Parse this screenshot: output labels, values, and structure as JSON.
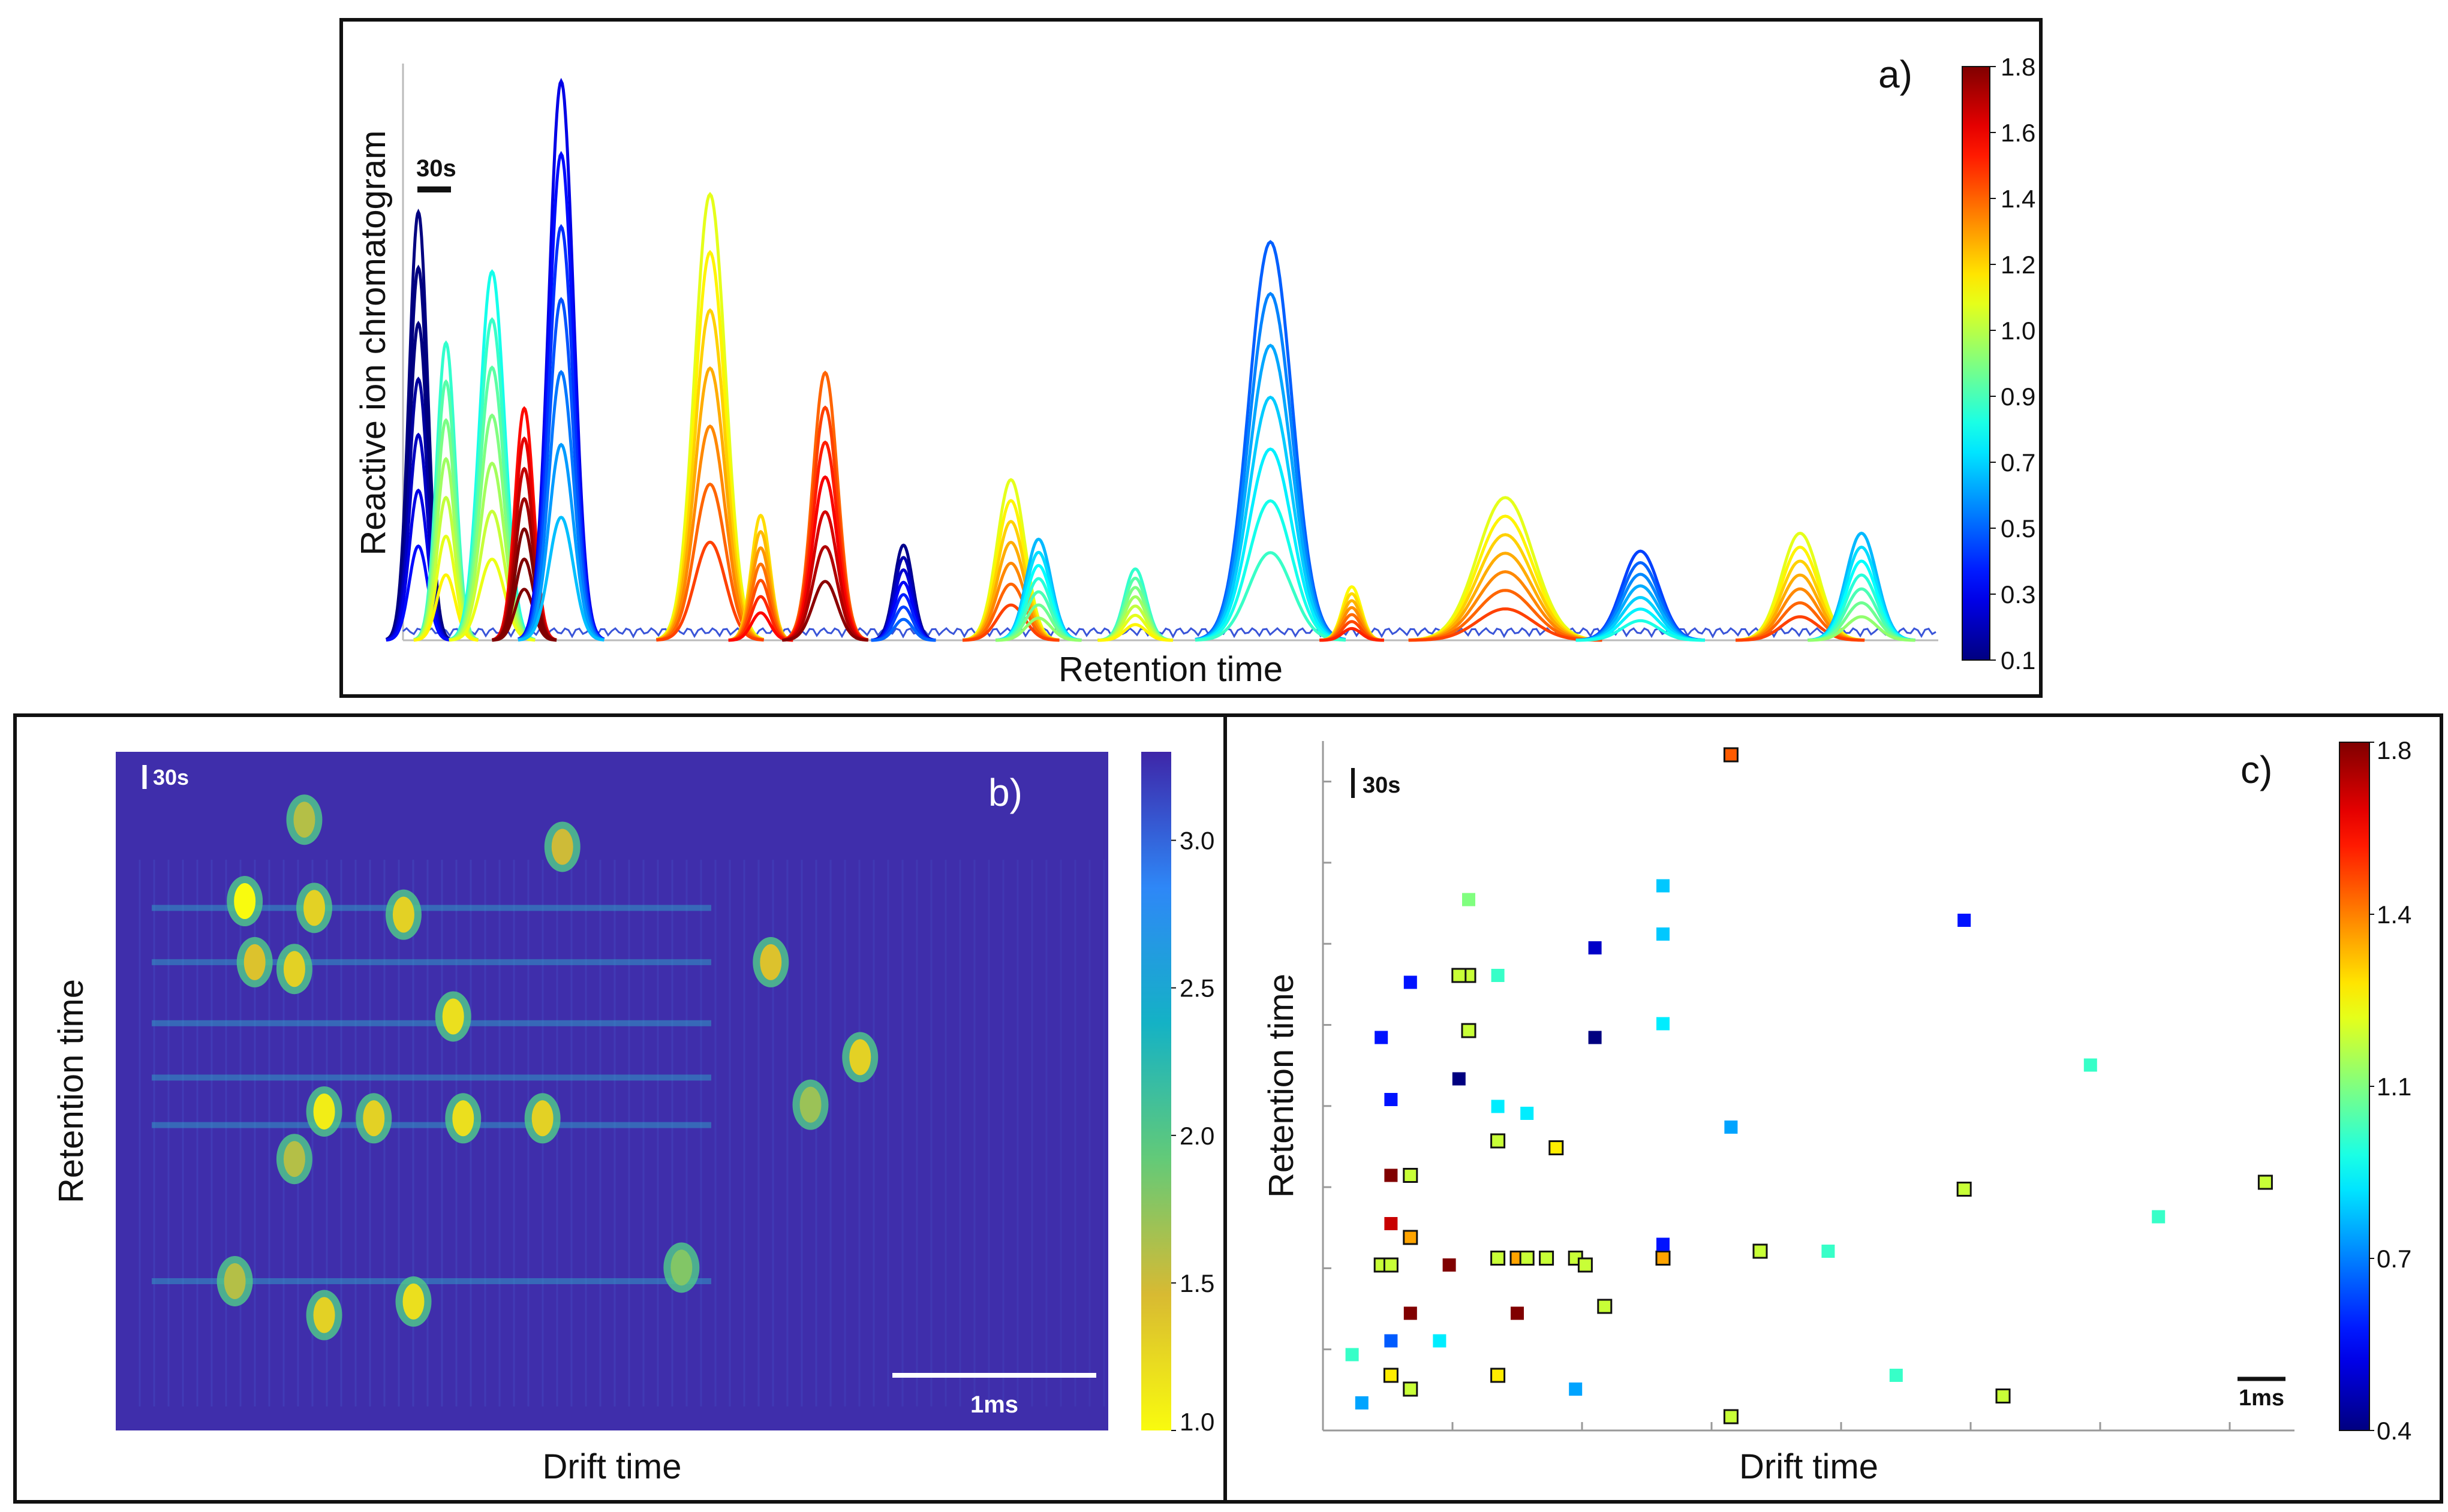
{
  "chart_data": [
    {
      "panel": "a)",
      "type": "line",
      "xlabel": "Retention time",
      "ylabel": "Reactive ion chromatogram",
      "scale_bar": "30s",
      "colorbar": {
        "ticks": [
          "0.1",
          "0.3",
          "0.5",
          "0.7",
          "0.9",
          "1.0",
          "1.2",
          "1.4",
          "1.6",
          "1.8"
        ],
        "colormap": "jet"
      },
      "peaks": [
        {
          "t": 0.01,
          "h": 0.72,
          "w": 0.006,
          "c": 0.15
        },
        {
          "t": 0.028,
          "h": 0.5,
          "w": 0.006,
          "c": 1.0
        },
        {
          "t": 0.058,
          "h": 0.62,
          "w": 0.008,
          "c": 0.95
        },
        {
          "t": 0.079,
          "h": 0.39,
          "w": 0.006,
          "c": 1.75
        },
        {
          "t": 0.103,
          "h": 0.94,
          "w": 0.008,
          "c": 0.45
        },
        {
          "t": 0.2,
          "h": 0.75,
          "w": 0.01,
          "c": 1.3
        },
        {
          "t": 0.233,
          "h": 0.21,
          "w": 0.006,
          "c": 1.4
        },
        {
          "t": 0.275,
          "h": 0.45,
          "w": 0.008,
          "c": 1.6
        },
        {
          "t": 0.326,
          "h": 0.16,
          "w": 0.006,
          "c": 0.3
        },
        {
          "t": 0.396,
          "h": 0.27,
          "w": 0.009,
          "c": 1.3
        },
        {
          "t": 0.414,
          "h": 0.17,
          "w": 0.008,
          "c": 0.8
        },
        {
          "t": 0.477,
          "h": 0.12,
          "w": 0.007,
          "c": 1.0
        },
        {
          "t": 0.565,
          "h": 0.67,
          "w": 0.014,
          "c": 0.65
        },
        {
          "t": 0.618,
          "h": 0.09,
          "w": 0.006,
          "c": 1.35
        },
        {
          "t": 0.718,
          "h": 0.24,
          "w": 0.018,
          "c": 1.3
        },
        {
          "t": 0.806,
          "h": 0.15,
          "w": 0.012,
          "c": 0.6
        },
        {
          "t": 0.91,
          "h": 0.18,
          "w": 0.012,
          "c": 1.3
        },
        {
          "t": 0.95,
          "h": 0.18,
          "w": 0.01,
          "c": 0.8
        }
      ]
    },
    {
      "panel": "b)",
      "type": "heatmap",
      "xlabel": "Drift time",
      "ylabel": "Retention time",
      "scale_bar_y": "30s",
      "scale_bar_x": "1ms",
      "colorbar": {
        "ticks": [
          "1.0",
          "1.5",
          "2.0",
          "2.5",
          "3.0"
        ],
        "colormap": "parula-reversed"
      },
      "spots": [
        {
          "x": 0.13,
          "y": 0.78,
          "v": 1.0
        },
        {
          "x": 0.2,
          "y": 0.77,
          "v": 1.3
        },
        {
          "x": 0.29,
          "y": 0.76,
          "v": 1.3
        },
        {
          "x": 0.14,
          "y": 0.69,
          "v": 1.4
        },
        {
          "x": 0.18,
          "y": 0.68,
          "v": 1.3
        },
        {
          "x": 0.34,
          "y": 0.61,
          "v": 1.2
        },
        {
          "x": 0.21,
          "y": 0.47,
          "v": 1.1
        },
        {
          "x": 0.26,
          "y": 0.46,
          "v": 1.3
        },
        {
          "x": 0.35,
          "y": 0.46,
          "v": 1.2
        },
        {
          "x": 0.43,
          "y": 0.46,
          "v": 1.3
        },
        {
          "x": 0.18,
          "y": 0.4,
          "v": 1.6
        },
        {
          "x": 0.66,
          "y": 0.69,
          "v": 1.4
        },
        {
          "x": 0.75,
          "y": 0.55,
          "v": 1.3
        },
        {
          "x": 0.7,
          "y": 0.48,
          "v": 1.7
        },
        {
          "x": 0.45,
          "y": 0.86,
          "v": 1.5
        },
        {
          "x": 0.19,
          "y": 0.9,
          "v": 1.6
        },
        {
          "x": 0.57,
          "y": 0.24,
          "v": 1.8
        },
        {
          "x": 0.3,
          "y": 0.19,
          "v": 1.2
        },
        {
          "x": 0.21,
          "y": 0.17,
          "v": 1.3
        },
        {
          "x": 0.12,
          "y": 0.22,
          "v": 1.6
        }
      ]
    },
    {
      "panel": "c)",
      "type": "scatter",
      "xlabel": "Drift time",
      "ylabel": "Retention time",
      "scale_bar_y": "30s",
      "scale_bar_x": "1ms",
      "colorbar": {
        "ticks": [
          "0.4",
          "0.7",
          "1.1",
          "1.4",
          "1.8"
        ],
        "colormap": "jet"
      },
      "points": [
        {
          "x": 0.42,
          "y": 0.98,
          "c": 1.5,
          "o": true
        },
        {
          "x": 0.15,
          "y": 0.77,
          "c": 1.1,
          "o": false
        },
        {
          "x": 0.35,
          "y": 0.79,
          "c": 0.85,
          "o": false
        },
        {
          "x": 0.35,
          "y": 0.72,
          "c": 0.85,
          "o": false
        },
        {
          "x": 0.66,
          "y": 0.74,
          "c": 0.6,
          "o": false
        },
        {
          "x": 0.28,
          "y": 0.7,
          "c": 0.5,
          "o": false
        },
        {
          "x": 0.09,
          "y": 0.65,
          "c": 0.6,
          "o": false
        },
        {
          "x": 0.15,
          "y": 0.66,
          "c": 1.2,
          "o": true
        },
        {
          "x": 0.14,
          "y": 0.66,
          "c": 1.2,
          "o": true
        },
        {
          "x": 0.18,
          "y": 0.66,
          "c": 1.0,
          "o": false
        },
        {
          "x": 0.35,
          "y": 0.59,
          "c": 0.9,
          "o": false
        },
        {
          "x": 0.28,
          "y": 0.57,
          "c": 0.4,
          "o": false
        },
        {
          "x": 0.15,
          "y": 0.58,
          "c": 1.2,
          "o": true
        },
        {
          "x": 0.06,
          "y": 0.57,
          "c": 0.6,
          "o": false
        },
        {
          "x": 0.79,
          "y": 0.53,
          "c": 1.0,
          "o": false
        },
        {
          "x": 0.14,
          "y": 0.51,
          "c": 0.4,
          "o": false
        },
        {
          "x": 0.07,
          "y": 0.48,
          "c": 0.6,
          "o": false
        },
        {
          "x": 0.18,
          "y": 0.47,
          "c": 0.9,
          "o": false
        },
        {
          "x": 0.21,
          "y": 0.46,
          "c": 0.9,
          "o": false
        },
        {
          "x": 0.42,
          "y": 0.44,
          "c": 0.8,
          "o": false
        },
        {
          "x": 0.18,
          "y": 0.42,
          "c": 1.2,
          "o": true
        },
        {
          "x": 0.24,
          "y": 0.41,
          "c": 1.3,
          "o": true
        },
        {
          "x": 0.07,
          "y": 0.37,
          "c": 1.8,
          "o": false
        },
        {
          "x": 0.09,
          "y": 0.37,
          "c": 1.2,
          "o": true
        },
        {
          "x": 0.66,
          "y": 0.35,
          "c": 1.2,
          "o": true
        },
        {
          "x": 0.97,
          "y": 0.36,
          "c": 1.2,
          "o": true
        },
        {
          "x": 0.86,
          "y": 0.31,
          "c": 1.0,
          "o": false
        },
        {
          "x": 0.07,
          "y": 0.3,
          "c": 1.7,
          "o": false
        },
        {
          "x": 0.09,
          "y": 0.28,
          "c": 1.4,
          "o": true
        },
        {
          "x": 0.35,
          "y": 0.26,
          "c": 0.9,
          "o": false
        },
        {
          "x": 0.06,
          "y": 0.24,
          "c": 1.2,
          "o": true
        },
        {
          "x": 0.07,
          "y": 0.24,
          "c": 1.2,
          "o": true
        },
        {
          "x": 0.13,
          "y": 0.24,
          "c": 1.8,
          "o": false
        },
        {
          "x": 0.18,
          "y": 0.25,
          "c": 1.2,
          "o": true
        },
        {
          "x": 0.2,
          "y": 0.25,
          "c": 1.4,
          "o": true
        },
        {
          "x": 0.21,
          "y": 0.25,
          "c": 1.2,
          "o": true
        },
        {
          "x": 0.23,
          "y": 0.25,
          "c": 1.2,
          "o": true
        },
        {
          "x": 0.26,
          "y": 0.25,
          "c": 1.2,
          "o": true
        },
        {
          "x": 0.27,
          "y": 0.24,
          "c": 1.2,
          "o": true
        },
        {
          "x": 0.35,
          "y": 0.25,
          "c": 1.4,
          "o": true
        },
        {
          "x": 0.45,
          "y": 0.26,
          "c": 1.2,
          "o": true
        },
        {
          "x": 0.52,
          "y": 0.26,
          "c": 1.0,
          "o": false
        },
        {
          "x": 0.35,
          "y": 0.27,
          "c": 0.6,
          "o": false
        },
        {
          "x": 0.09,
          "y": 0.17,
          "c": 1.8,
          "o": false
        },
        {
          "x": 0.2,
          "y": 0.17,
          "c": 1.8,
          "o": false
        },
        {
          "x": 0.29,
          "y": 0.18,
          "c": 1.2,
          "o": true
        },
        {
          "x": 0.07,
          "y": 0.13,
          "c": 0.7,
          "o": false
        },
        {
          "x": 0.12,
          "y": 0.13,
          "c": 0.9,
          "o": false
        },
        {
          "x": 0.07,
          "y": 0.08,
          "c": 1.3,
          "o": true
        },
        {
          "x": 0.09,
          "y": 0.06,
          "c": 1.2,
          "o": true
        },
        {
          "x": 0.18,
          "y": 0.08,
          "c": 1.3,
          "o": true
        },
        {
          "x": 0.26,
          "y": 0.06,
          "c": 0.8,
          "o": false
        },
        {
          "x": 0.59,
          "y": 0.08,
          "c": 1.0,
          "o": false
        },
        {
          "x": 0.7,
          "y": 0.05,
          "c": 1.2,
          "o": true
        },
        {
          "x": 0.42,
          "y": 0.02,
          "c": 1.2,
          "o": true
        },
        {
          "x": 0.04,
          "y": 0.04,
          "c": 0.8,
          "o": false
        },
        {
          "x": 0.03,
          "y": 0.11,
          "c": 1.0,
          "o": false
        }
      ]
    }
  ]
}
